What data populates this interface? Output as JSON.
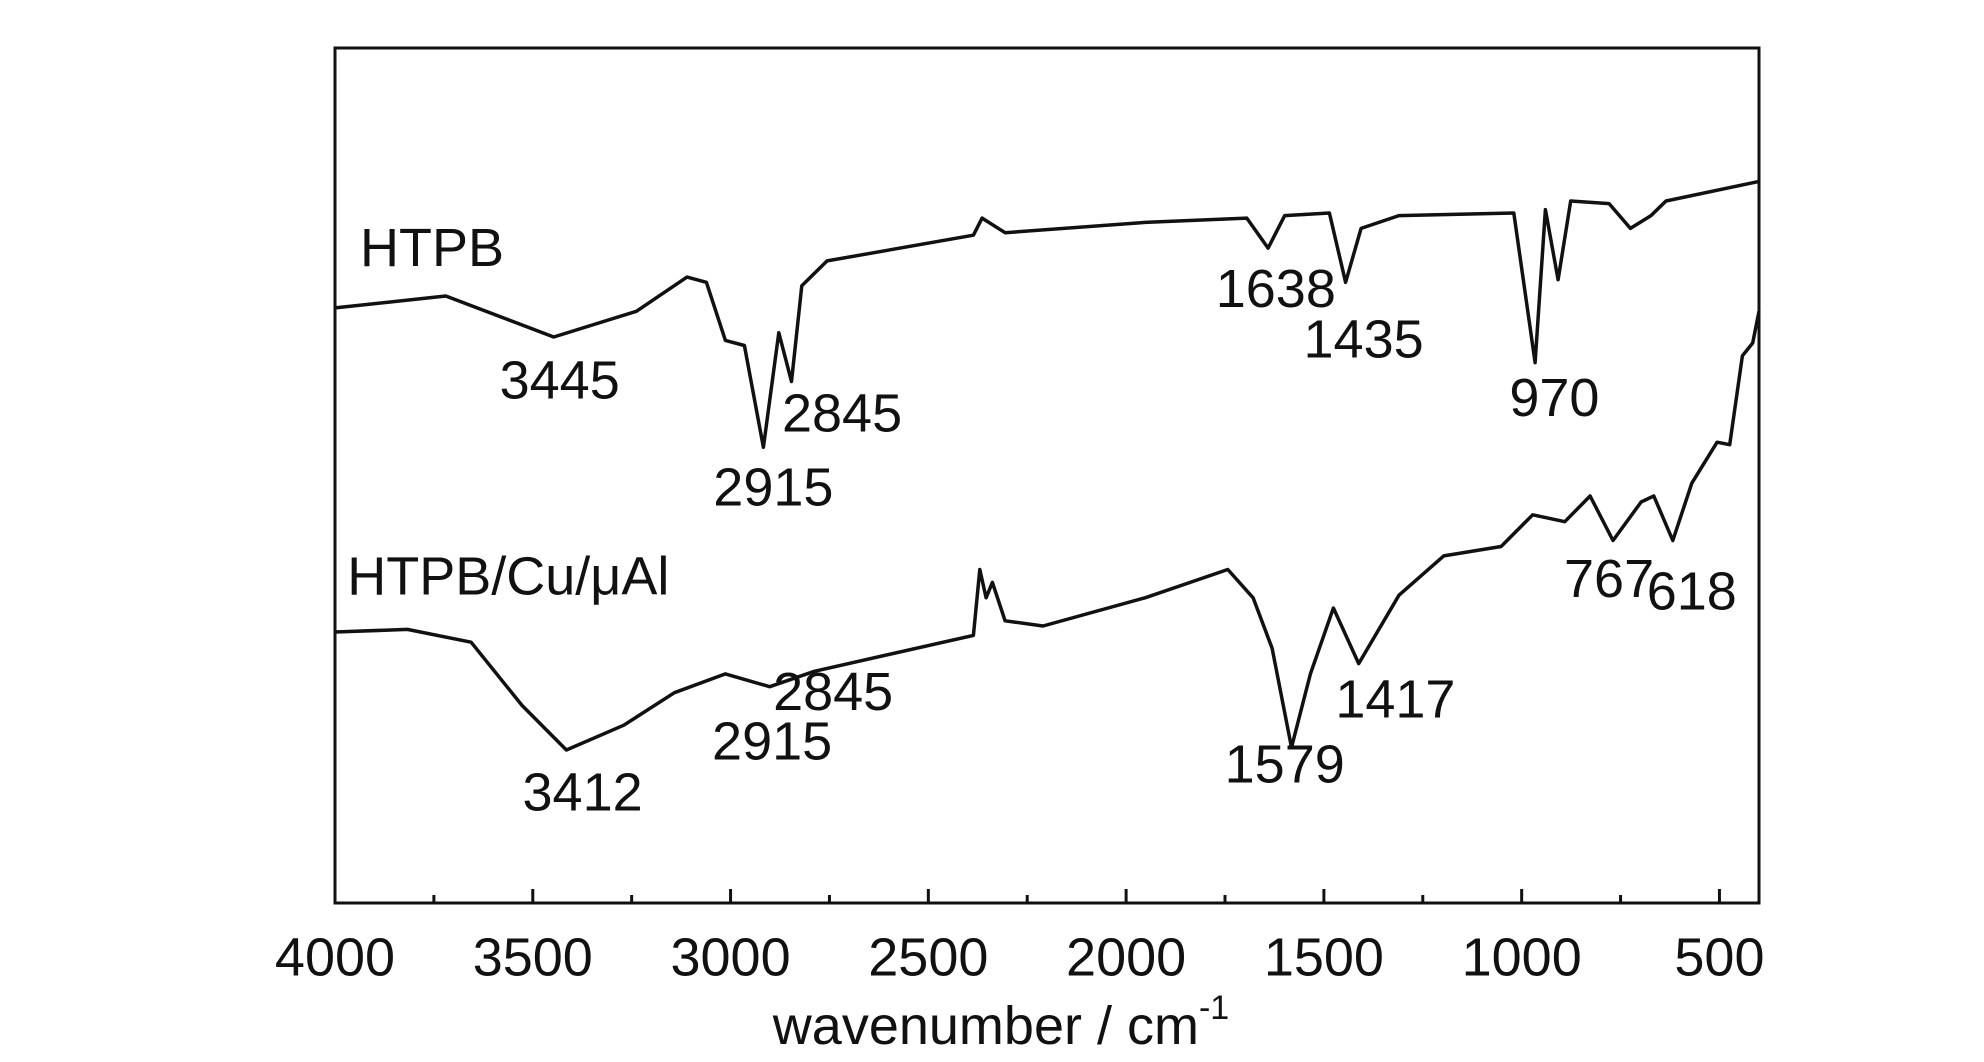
{
  "chart_data": {
    "type": "line",
    "xlabel": {
      "text": "wavenumber / cm",
      "superscript": "-1"
    },
    "xlim": [
      4000,
      400
    ],
    "xticks": [
      4000,
      3500,
      3000,
      2500,
      2000,
      1500,
      1000,
      500
    ],
    "xminor_ticks": [
      3750,
      3250,
      2750,
      2250,
      1750,
      1250,
      750
    ],
    "ylim": [
      0,
      100
    ],
    "yticks": [],
    "grid": false,
    "legend": false,
    "series": [
      {
        "name": "HTPB",
        "color": "#111111",
        "x": [
          4000,
          3720,
          3447,
          3238,
          3110,
          3061,
          3013,
          2965,
          2917,
          2878,
          2846,
          2820,
          2756,
          2386,
          2364,
          2306,
          1952,
          1695,
          1641,
          1599,
          1486,
          1445,
          1406,
          1310,
          1020,
          966,
          940,
          908,
          876,
          779,
          725,
          673,
          635,
          400
        ],
        "values": [
          69.6,
          71,
          66.2,
          69.2,
          73.2,
          72.6,
          65.8,
          65.2,
          53.3,
          66.7,
          61,
          72.2,
          75.1,
          78.1,
          80.1,
          78.4,
          79.6,
          80.1,
          76.6,
          80.4,
          80.7,
          72.6,
          78.9,
          80.4,
          80.7,
          63.2,
          81.1,
          72.9,
          82.1,
          81.8,
          78.9,
          80.4,
          82.1,
          84.4
        ]
      },
      {
        "name": "HTPB/Cu/μAl",
        "color": "#111111",
        "x": [
          4000,
          3817,
          3656,
          3527,
          3415,
          3270,
          3142,
          3013,
          2901,
          2788,
          2386,
          2370,
          2354,
          2338,
          2306,
          2210,
          1952,
          1743,
          1679,
          1631,
          1582,
          1534,
          1476,
          1412,
          1310,
          1197,
          1052,
          972,
          891,
          827,
          769,
          698,
          666,
          618,
          570,
          506,
          474,
          442,
          416,
          400
        ],
        "values": [
          31.7,
          32,
          30.5,
          23.1,
          17.9,
          20.8,
          24.6,
          26.8,
          25.3,
          27.1,
          31.3,
          39,
          35.7,
          37.5,
          33,
          32.4,
          35.7,
          39,
          35.7,
          29.8,
          18.2,
          26.8,
          34.5,
          28,
          36,
          40.6,
          41.7,
          45.4,
          44.6,
          47.6,
          42.4,
          46.9,
          47.6,
          42.4,
          49.1,
          53.9,
          53.6,
          64,
          65.5,
          69.2
        ]
      }
    ],
    "annotations": [
      "3445",
      "2915",
      "2845",
      "1638",
      "1435",
      "970",
      "3412",
      "2915",
      "2845",
      "1579",
      "1417",
      "767",
      "618"
    ]
  }
}
